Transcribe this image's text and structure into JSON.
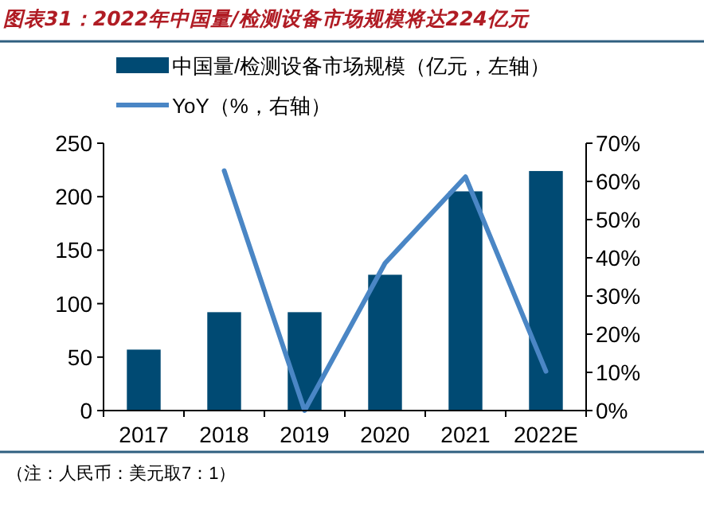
{
  "chart_data": {
    "type": "bar",
    "title": "图表31：2022年中国量/检测设备市场规模将达224亿元",
    "categories": [
      "2017",
      "2018",
      "2019",
      "2020",
      "2021",
      "2022E"
    ],
    "series": [
      {
        "name": "中国量/检测设备市场规模（亿元，左轴）",
        "color": "#004a73",
        "values": [
          57,
          92,
          92,
          127,
          205,
          224
        ]
      },
      {
        "name": "YoY（%，右轴）",
        "type": "line",
        "axis": "y2",
        "color": "#4a86c5",
        "values": [
          null,
          62.8,
          0,
          38.6,
          61.2,
          10.3
        ]
      }
    ],
    "ylim": [
      0,
      250
    ],
    "yticks": [
      0,
      50,
      100,
      150,
      200,
      250
    ],
    "y2lim": [
      0,
      70
    ],
    "y2ticks": [
      {
        "value": 0,
        "label": "0%"
      },
      {
        "value": 10,
        "label": "10%"
      },
      {
        "value": 20,
        "label": "20%"
      },
      {
        "value": 30,
        "label": "30%"
      },
      {
        "value": 40,
        "label": "40%"
      },
      {
        "value": 50,
        "label": "50%"
      },
      {
        "value": 60,
        "label": "60%"
      },
      {
        "value": 70,
        "label": "70%"
      }
    ],
    "legend": "top",
    "grid": false,
    "annotations": [
      "（注：人民币：美元取7：1）"
    ]
  }
}
